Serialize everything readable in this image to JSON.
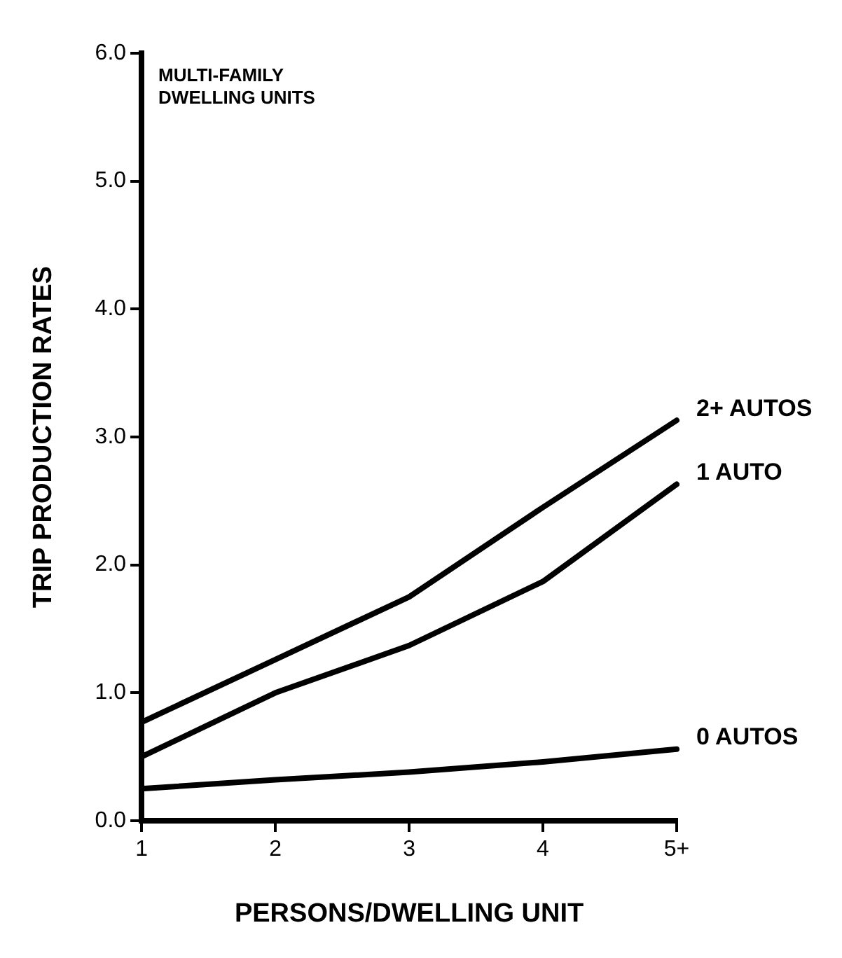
{
  "chart_data": {
    "type": "line",
    "title": "MULTI-FAMILY\nDWELLING UNITS",
    "xlabel": "PERSONS/DWELLING UNIT",
    "ylabel": "TRIP PRODUCTION RATES",
    "categories": [
      "1",
      "2",
      "3",
      "4",
      "5+"
    ],
    "series": [
      {
        "name": "2+ AUTOS",
        "color": "#000000",
        "values": [
          0.77,
          1.26,
          1.75,
          2.45,
          3.13
        ]
      },
      {
        "name": "1 AUTO",
        "color": "#000000",
        "values": [
          0.5,
          1.0,
          1.37,
          1.87,
          2.63
        ]
      },
      {
        "name": "0 AUTOS",
        "color": "#000000",
        "values": [
          0.25,
          0.32,
          0.38,
          0.46,
          0.56
        ]
      }
    ],
    "ylim": [
      0,
      6
    ],
    "yticks": [
      {
        "value": 0,
        "label": "0.0"
      },
      {
        "value": 1,
        "label": "1.0"
      },
      {
        "value": 2,
        "label": "2.0"
      },
      {
        "value": 3,
        "label": "3.0"
      },
      {
        "value": 4,
        "label": "4.0"
      },
      {
        "value": 5,
        "label": "5.0"
      },
      {
        "value": 6,
        "label": "6.0"
      }
    ],
    "grid": false,
    "legend": false,
    "marker": "none",
    "line_style": "solid"
  }
}
